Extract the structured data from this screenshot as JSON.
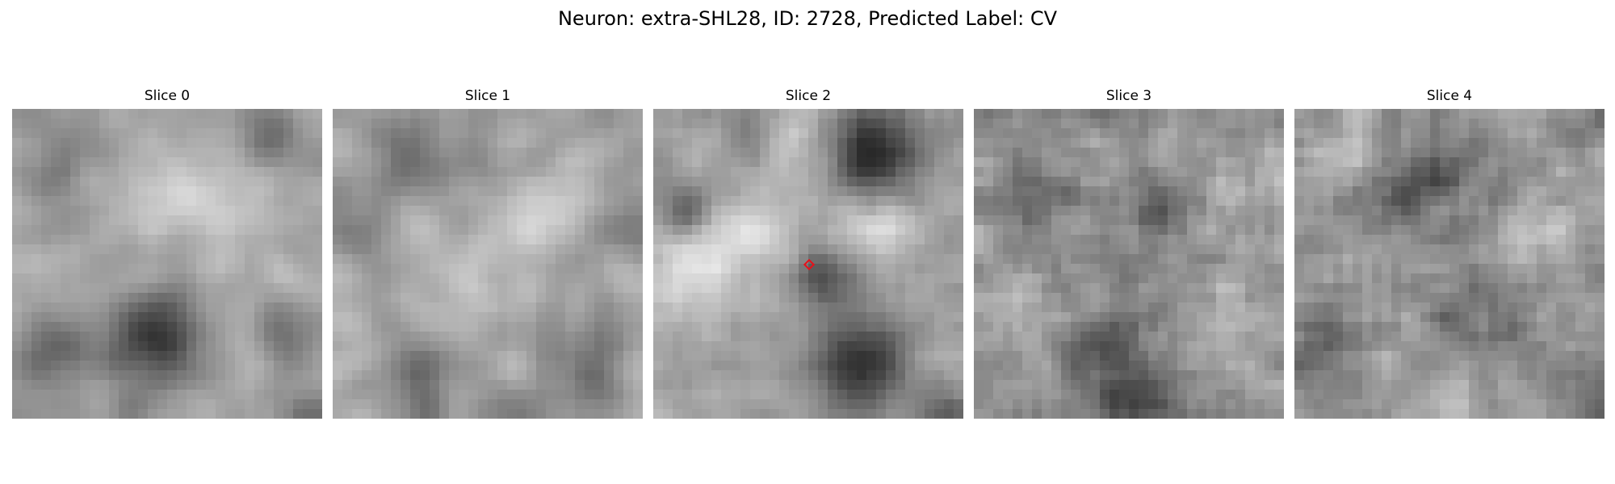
{
  "figure": {
    "title": "Neuron: extra-SHL28, ID: 2728, Predicted Label: CV"
  },
  "panels": [
    {
      "title": "Slice 0"
    },
    {
      "title": "Slice 1"
    },
    {
      "title": "Slice 2"
    },
    {
      "title": "Slice 3"
    },
    {
      "title": "Slice 4"
    }
  ],
  "colormap": "gray",
  "marker": {
    "panel": 2,
    "shape": "diamond",
    "color": "#e8101a"
  }
}
